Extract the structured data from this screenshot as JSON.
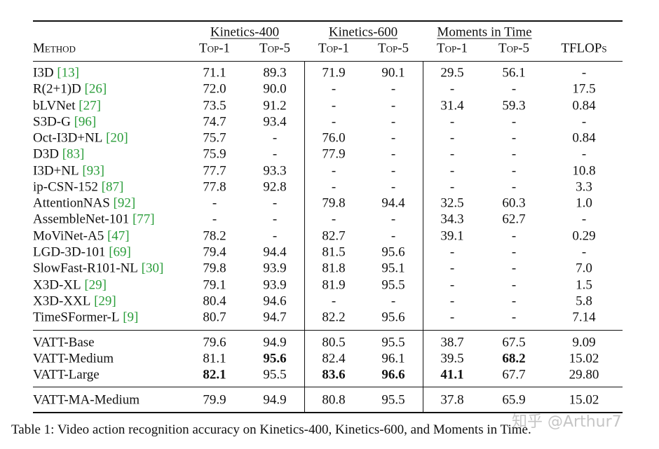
{
  "table": {
    "groups": [
      "Kinetics-400",
      "Kinetics-600",
      "Moments in Time"
    ],
    "columns": [
      "Method",
      "Top-1",
      "Top-5",
      "Top-1",
      "Top-5",
      "Top-1",
      "Top-5",
      "TFLOPs"
    ],
    "sections": [
      [
        {
          "method": "I3D",
          "ref": "[13]",
          "cells": [
            "71.1",
            "89.3",
            "71.9",
            "90.1",
            "29.5",
            "56.1",
            "-"
          ]
        },
        {
          "method": "R(2+1)D",
          "ref": "[26]",
          "cells": [
            "72.0",
            "90.0",
            "-",
            "-",
            "-",
            "-",
            "17.5"
          ]
        },
        {
          "method": "bLVNet",
          "ref": "[27]",
          "cells": [
            "73.5",
            "91.2",
            "-",
            "-",
            "31.4",
            "59.3",
            "0.84"
          ]
        },
        {
          "method": "S3D-G",
          "ref": "[96]",
          "cells": [
            "74.7",
            "93.4",
            "-",
            "-",
            "-",
            "-",
            "-"
          ]
        },
        {
          "method": "Oct-I3D+NL",
          "ref": "[20]",
          "cells": [
            "75.7",
            "-",
            "76.0",
            "-",
            "-",
            "-",
            "0.84"
          ]
        },
        {
          "method": "D3D",
          "ref": "[83]",
          "cells": [
            "75.9",
            "-",
            "77.9",
            "-",
            "-",
            "-",
            "-"
          ]
        },
        {
          "method": "I3D+NL",
          "ref": "[93]",
          "cells": [
            "77.7",
            "93.3",
            "-",
            "-",
            "-",
            "-",
            "10.8"
          ]
        },
        {
          "method": "ip-CSN-152",
          "ref": "[87]",
          "cells": [
            "77.8",
            "92.8",
            "-",
            "-",
            "-",
            "-",
            "3.3"
          ]
        },
        {
          "method": "AttentionNAS",
          "ref": "[92]",
          "cells": [
            "-",
            "-",
            "79.8",
            "94.4",
            "32.5",
            "60.3",
            "1.0"
          ]
        },
        {
          "method": "AssembleNet-101",
          "ref": "[77]",
          "cells": [
            "-",
            "-",
            "-",
            "-",
            "34.3",
            "62.7",
            "-"
          ]
        },
        {
          "method": "MoViNet-A5",
          "ref": "[47]",
          "cells": [
            "78.2",
            "-",
            "82.7",
            "-",
            "39.1",
            "-",
            "0.29"
          ]
        },
        {
          "method": "LGD-3D-101",
          "ref": "[69]",
          "cells": [
            "79.4",
            "94.4",
            "81.5",
            "95.6",
            "-",
            "-",
            "-"
          ]
        },
        {
          "method": "SlowFast-R101-NL",
          "ref": "[30]",
          "cells": [
            "79.8",
            "93.9",
            "81.8",
            "95.1",
            "-",
            "-",
            "7.0"
          ]
        },
        {
          "method": "X3D-XL",
          "ref": "[29]",
          "cells": [
            "79.1",
            "93.9",
            "81.9",
            "95.5",
            "-",
            "-",
            "1.5"
          ]
        },
        {
          "method": "X3D-XXL",
          "ref": "[29]",
          "cells": [
            "80.4",
            "94.6",
            "-",
            "-",
            "-",
            "-",
            "5.8"
          ]
        },
        {
          "method": "TimeSFormer-L",
          "ref": "[9]",
          "cells": [
            "80.7",
            "94.7",
            "82.2",
            "95.6",
            "-",
            "-",
            "7.14"
          ]
        }
      ],
      [
        {
          "method": "VATT-Base",
          "cells": [
            "79.6",
            "94.9",
            "80.5",
            "95.5",
            "38.7",
            "67.5",
            "9.09"
          ]
        },
        {
          "method": "VATT-Medium",
          "cells": [
            "81.1",
            {
              "text": "95.6",
              "bold": true
            },
            "82.4",
            "96.1",
            "39.5",
            {
              "text": "68.2",
              "bold": true
            },
            "15.02"
          ]
        },
        {
          "method": "VATT-Large",
          "cells": [
            {
              "text": "82.1",
              "bold": true
            },
            "95.5",
            {
              "text": "83.6",
              "bold": true
            },
            {
              "text": "96.6",
              "bold": true
            },
            {
              "text": "41.1",
              "bold": true
            },
            "67.7",
            "29.80"
          ]
        }
      ],
      [
        {
          "method": "VATT-MA-Medium",
          "cells": [
            "79.9",
            "94.9",
            "80.8",
            "95.5",
            "37.8",
            "65.9",
            "15.02"
          ]
        }
      ]
    ]
  },
  "caption": "Table 1: Video action recognition accuracy on Kinetics-400, Kinetics-600, and Moments in Time.",
  "watermark": "知乎 @Arthur7"
}
